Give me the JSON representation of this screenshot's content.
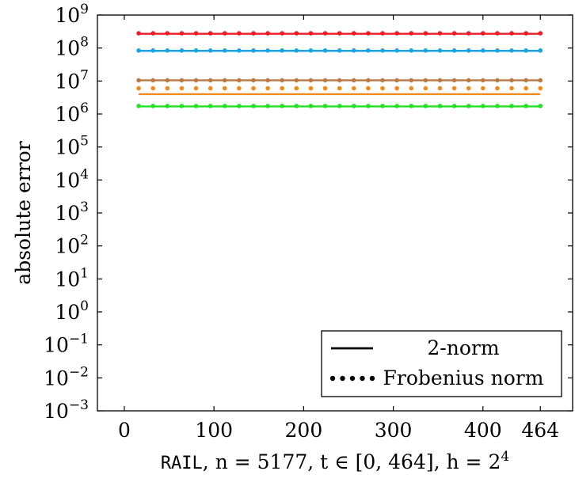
{
  "chart_data": {
    "type": "line",
    "xlabel": {
      "matrix": "RAIL",
      "rest": ", n = 5177, t ∈ [0, 464], h = 2",
      "exp": "4"
    },
    "ylabel": "absolute error",
    "yscale": "log",
    "xlim": [
      -30,
      500
    ],
    "ylim": [
      0.001,
      1000000000
    ],
    "x_ticks": [
      0,
      100,
      200,
      300,
      400,
      464
    ],
    "y_ticks": [
      {
        "value": 0.001,
        "base": "10",
        "exp": "−3"
      },
      {
        "value": 0.01,
        "base": "10",
        "exp": "−2"
      },
      {
        "value": 0.1,
        "base": "10",
        "exp": "−1"
      },
      {
        "value": 1,
        "base": "10",
        "exp": "0"
      },
      {
        "value": 10,
        "base": "10",
        "exp": "1"
      },
      {
        "value": 100,
        "base": "10",
        "exp": "2"
      },
      {
        "value": 1000,
        "base": "10",
        "exp": "3"
      },
      {
        "value": 10000,
        "base": "10",
        "exp": "4"
      },
      {
        "value": 100000,
        "base": "10",
        "exp": "5"
      },
      {
        "value": 1000000,
        "base": "10",
        "exp": "6"
      },
      {
        "value": 10000000,
        "base": "10",
        "exp": "7"
      },
      {
        "value": 100000000,
        "base": "10",
        "exp": "8"
      },
      {
        "value": 1000000000,
        "base": "10",
        "exp": "9"
      }
    ],
    "x_range": [
      16,
      464
    ],
    "marker_step": 16,
    "series": [
      {
        "color": "#ee1c25",
        "two_norm": 270000000,
        "frobenius": 280000000
      },
      {
        "color": "#1aa3e0",
        "two_norm": 82000000,
        "frobenius": 84000000
      },
      {
        "color": "#b87b45",
        "two_norm": 10500000,
        "frobenius": 10500000
      },
      {
        "color": "#f28a1c",
        "two_norm": 4000000,
        "frobenius": 6000000
      },
      {
        "color": "#22e022",
        "two_norm": 1700000,
        "frobenius": 1750000
      }
    ],
    "legend": {
      "position": "bottom-right",
      "entries": [
        {
          "label": "2-norm",
          "style": "solid"
        },
        {
          "label": "Frobenius norm",
          "style": "dotted"
        }
      ]
    },
    "grid": false
  }
}
